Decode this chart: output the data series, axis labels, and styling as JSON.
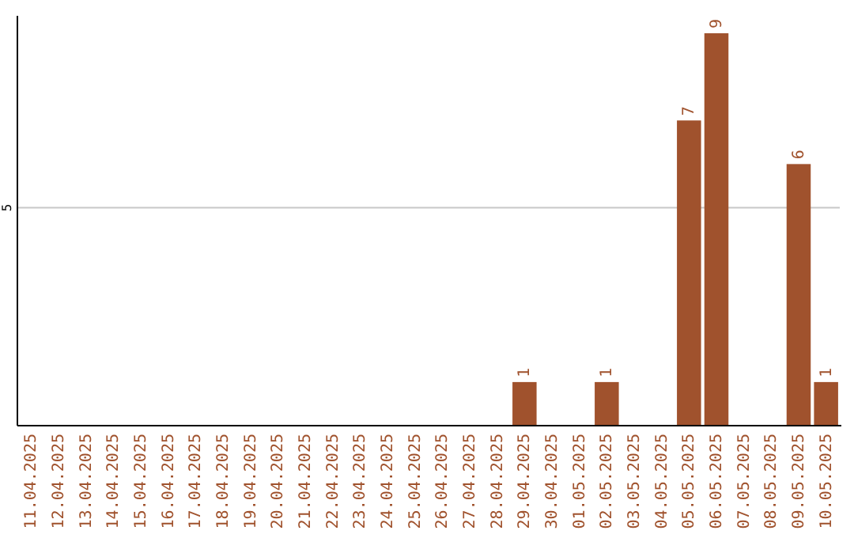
{
  "chart_data": {
    "type": "bar",
    "categories": [
      "11.04.2025",
      "12.04.2025",
      "13.04.2025",
      "14.04.2025",
      "15.04.2025",
      "16.04.2025",
      "17.04.2025",
      "18.04.2025",
      "19.04.2025",
      "20.04.2025",
      "21.04.2025",
      "22.04.2025",
      "23.04.2025",
      "24.04.2025",
      "25.04.2025",
      "26.04.2025",
      "27.04.2025",
      "28.04.2025",
      "29.04.2025",
      "30.04.2025",
      "01.05.2025",
      "02.05.2025",
      "03.05.2025",
      "04.05.2025",
      "05.05.2025",
      "06.05.2025",
      "07.05.2025",
      "08.05.2025",
      "09.05.2025",
      "10.05.2025"
    ],
    "values": [
      null,
      null,
      null,
      null,
      null,
      null,
      null,
      null,
      null,
      null,
      null,
      null,
      null,
      null,
      null,
      null,
      null,
      null,
      1,
      null,
      null,
      1,
      null,
      null,
      7,
      9,
      null,
      null,
      6,
      1
    ],
    "data_labels": true,
    "color": "#a0522d",
    "ylim": [
      0,
      9.4
    ],
    "yticks": [
      5
    ],
    "grid": "y"
  }
}
